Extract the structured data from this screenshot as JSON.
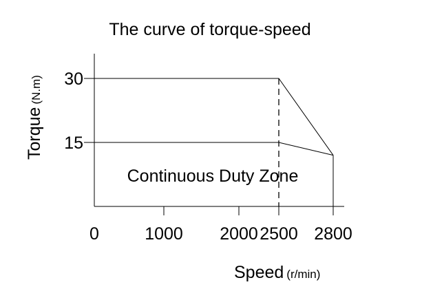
{
  "chart_data": {
    "type": "line",
    "title": "The curve of torque-speed",
    "xlabel": "Speed",
    "xlabel_unit": "(r/min)",
    "ylabel": "Torque",
    "ylabel_unit": "(N.m)",
    "x_ticks": [
      "0",
      "1000",
      "2000",
      "2500",
      "2800"
    ],
    "y_ticks": [
      "30",
      "15"
    ],
    "xlim": [
      0,
      2800
    ],
    "ylim": [
      0,
      30
    ],
    "series": [
      {
        "x": [
          0,
          2500,
          2800
        ],
        "y": [
          30,
          30,
          12
        ]
      },
      {
        "x": [
          0,
          2500,
          2800
        ],
        "y": [
          15,
          15,
          12
        ]
      }
    ],
    "annotations": [
      "Continuous Duty Zone"
    ],
    "grid": false
  }
}
